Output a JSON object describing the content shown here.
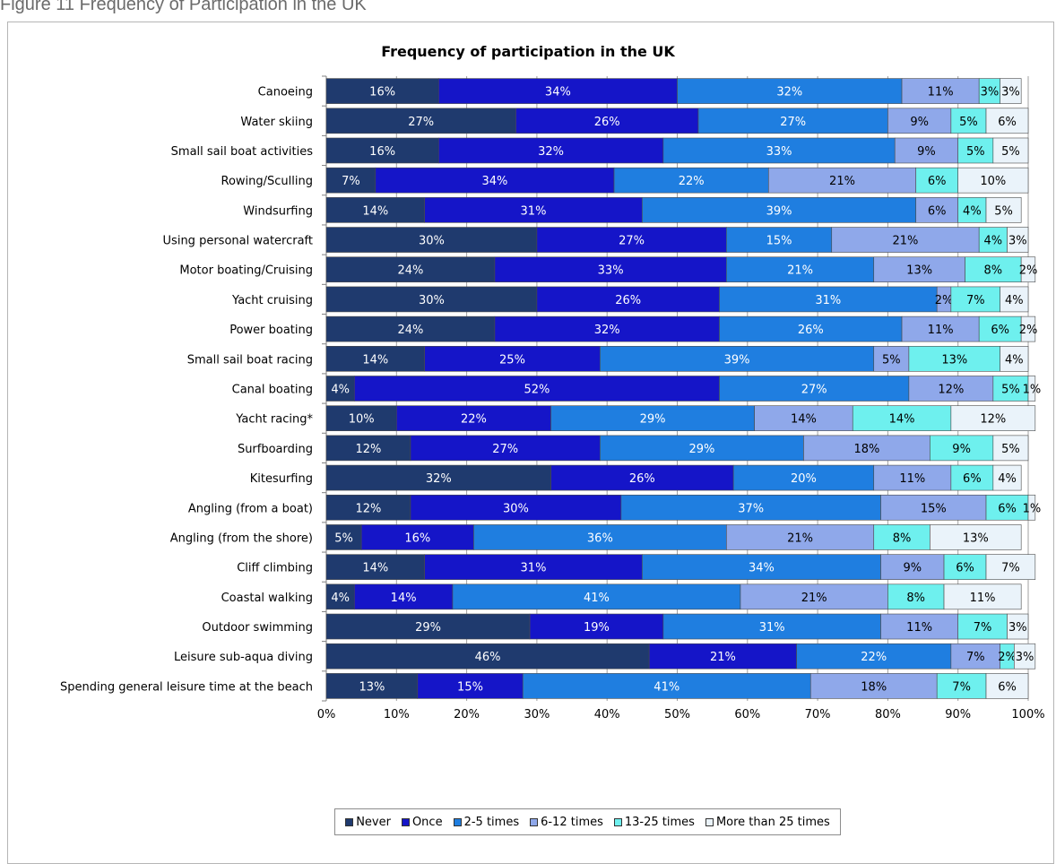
{
  "figure_caption": "Figure 11 Frequency of Participation in the UK",
  "chart_data": {
    "type": "bar",
    "orientation": "horizontal",
    "stacked": true,
    "title": "Frequency of participation in the UK",
    "xlim": [
      0,
      100
    ],
    "x_ticks": [
      "0%",
      "10%",
      "20%",
      "30%",
      "40%",
      "50%",
      "60%",
      "70%",
      "80%",
      "90%",
      "100%"
    ],
    "grid": true,
    "legend_position": "bottom",
    "categories": [
      "Canoeing",
      "Water skiing",
      "Small sail boat activities",
      "Rowing/Sculling",
      "Windsurfing",
      "Using personal watercraft",
      "Motor boating/Cruising",
      "Yacht cruising",
      "Power boating",
      "Small sail boat racing",
      "Canal boating",
      "Yacht racing*",
      "Surfboarding",
      "Kitesurfing",
      "Angling (from a boat)",
      "Angling (from the shore)",
      "Cliff climbing",
      "Coastal walking",
      "Outdoor swimming",
      "Leisure sub-aqua diving",
      "Spending general leisure time at the beach"
    ],
    "series": [
      {
        "name": "Never",
        "color": "#1f3a6e",
        "label_color": "#ffffff",
        "values": [
          16,
          27,
          16,
          7,
          14,
          30,
          24,
          30,
          24,
          14,
          4,
          10,
          12,
          32,
          12,
          5,
          14,
          4,
          29,
          46,
          13
        ]
      },
      {
        "name": "Once",
        "color": "#1515c8",
        "label_color": "#ffffff",
        "values": [
          34,
          26,
          32,
          34,
          31,
          27,
          33,
          26,
          32,
          25,
          52,
          22,
          27,
          26,
          30,
          16,
          31,
          14,
          19,
          21,
          15
        ]
      },
      {
        "name": "2-5 times",
        "color": "#1f7ee0",
        "label_color": "#ffffff",
        "values": [
          32,
          27,
          33,
          22,
          39,
          15,
          21,
          31,
          26,
          39,
          27,
          29,
          29,
          20,
          37,
          36,
          34,
          41,
          31,
          22,
          41
        ]
      },
      {
        "name": "6-12 times",
        "color": "#8fa8ea",
        "label_color": "#000000",
        "values": [
          11,
          9,
          9,
          21,
          6,
          21,
          13,
          2,
          11,
          5,
          12,
          14,
          18,
          11,
          15,
          21,
          9,
          21,
          11,
          7,
          18
        ]
      },
      {
        "name": "13-25 times",
        "color": "#6ef0ee",
        "label_color": "#000000",
        "values": [
          3,
          5,
          5,
          6,
          4,
          4,
          8,
          7,
          6,
          13,
          5,
          14,
          9,
          6,
          6,
          8,
          6,
          8,
          7,
          2,
          7
        ]
      },
      {
        "name": "More than 25 times",
        "color": "#eaf3fa",
        "label_color": "#000000",
        "values": [
          3,
          6,
          5,
          10,
          5,
          3,
          2,
          4,
          2,
          4,
          1,
          12,
          5,
          4,
          1,
          13,
          7,
          11,
          3,
          3,
          6
        ]
      }
    ]
  }
}
